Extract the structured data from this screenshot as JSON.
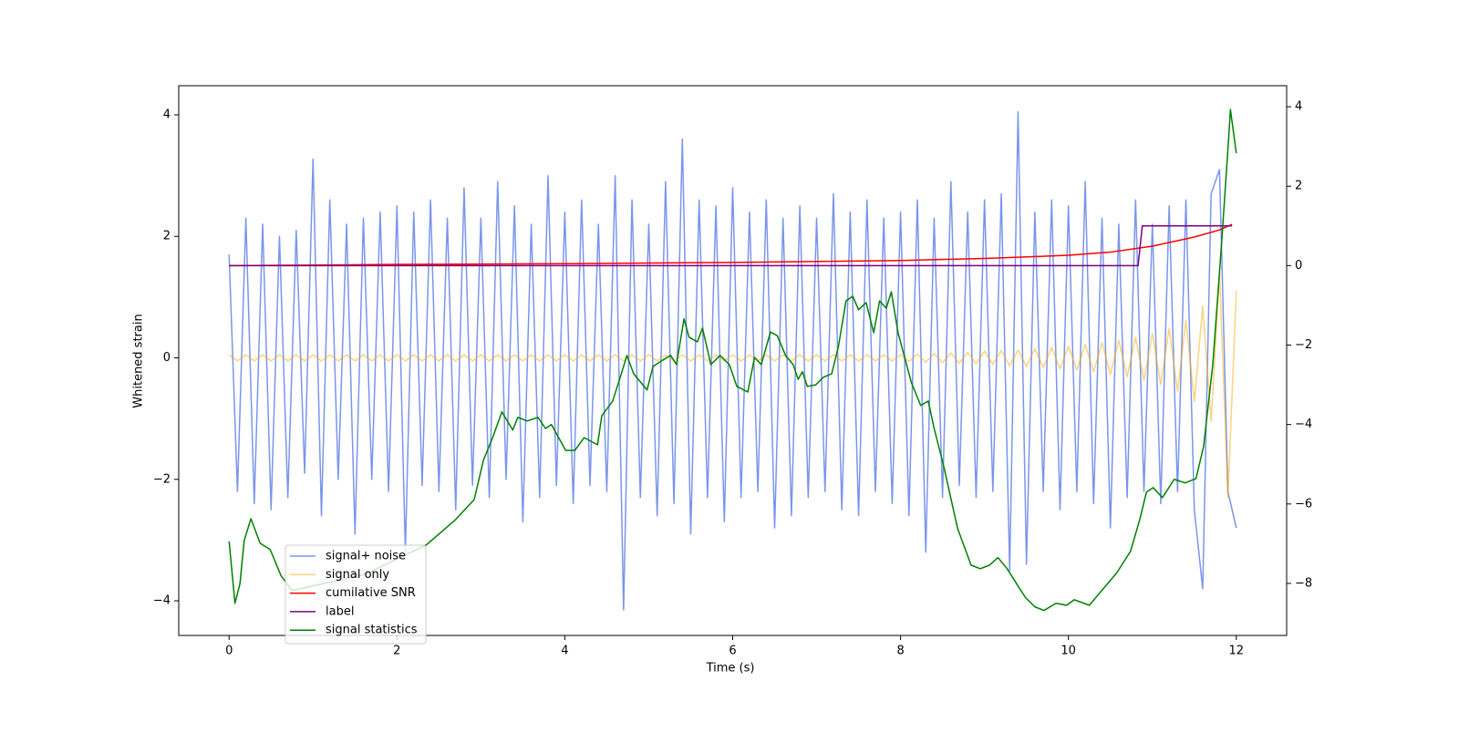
{
  "chart_data": {
    "type": "line",
    "xlabel": "Time (s)",
    "ylabel": "Whitened strain",
    "xlim": [
      -0.6,
      12.6
    ],
    "ylim": [
      -4.57,
      4.48
    ],
    "y2lim": [
      -9.31,
      4.53
    ],
    "xticks": [
      0,
      2,
      4,
      6,
      8,
      10,
      12
    ],
    "yticks": [
      {
        "value": -4,
        "label": "−4"
      },
      {
        "value": -2,
        "label": "−2"
      },
      0,
      2,
      4
    ],
    "y2ticks": [
      {
        "value": -8,
        "label": "−8"
      },
      {
        "value": -6,
        "label": "−6"
      },
      {
        "value": -4,
        "label": "−4"
      },
      {
        "value": -2,
        "label": "−2"
      },
      0,
      2,
      4
    ],
    "legend": "lower left",
    "x": [
      0,
      0.1,
      0.2,
      0.3,
      0.4,
      0.5,
      0.6,
      0.7,
      0.8,
      0.9,
      1,
      1.1,
      1.2,
      1.3,
      1.4,
      1.5,
      1.6,
      1.7,
      1.8,
      1.9,
      2,
      2.1,
      2.2,
      2.3,
      2.4,
      2.5,
      2.6,
      2.7,
      2.8,
      2.9,
      3,
      3.1,
      3.2,
      3.3,
      3.4,
      3.5,
      3.6,
      3.7,
      3.8,
      3.9,
      4,
      4.1,
      4.2,
      4.3,
      4.4,
      4.5,
      4.6,
      4.7,
      4.8,
      4.9,
      5,
      5.1,
      5.2,
      5.3,
      5.4,
      5.5,
      5.6,
      5.7,
      5.8,
      5.9,
      6,
      6.1,
      6.2,
      6.3,
      6.4,
      6.5,
      6.6,
      6.7,
      6.8,
      6.9,
      7,
      7.1,
      7.2,
      7.3,
      7.4,
      7.5,
      7.6,
      7.7,
      7.8,
      7.9,
      8,
      8.1,
      8.2,
      8.3,
      8.4,
      8.5,
      8.6,
      8.7,
      8.8,
      8.9,
      9,
      9.1,
      9.2,
      9.3,
      9.4,
      9.5,
      9.6,
      9.7,
      9.8,
      9.9,
      10,
      10.1,
      10.2,
      10.3,
      10.4,
      10.5,
      10.6,
      10.7,
      10.8,
      10.9,
      11,
      11.1,
      11.2,
      11.3,
      11.4,
      11.5,
      11.6,
      11.7,
      11.8,
      11.9,
      12
    ],
    "series": [
      {
        "name": "signal+ noise",
        "color": "#4169e1",
        "alpha": 0.7,
        "values": [
          1.7,
          -2.2,
          2.3,
          -2.4,
          2.2,
          -2.5,
          2.0,
          -2.3,
          2.1,
          -1.9,
          3.27,
          -2.6,
          2.6,
          -2.0,
          2.2,
          -2.9,
          2.3,
          -2.0,
          2.4,
          -2.2,
          2.5,
          -3.2,
          2.4,
          -2.1,
          2.6,
          -2.2,
          2.3,
          -2.5,
          2.8,
          -2.1,
          2.3,
          -2.3,
          2.9,
          -2.0,
          2.5,
          -2.7,
          2.2,
          -2.3,
          3.0,
          -2.1,
          2.4,
          -2.4,
          2.6,
          -2.1,
          2.2,
          -2.2,
          3.0,
          -4.15,
          2.6,
          -2.3,
          2.2,
          -2.6,
          2.9,
          -2.4,
          3.6,
          -2.9,
          2.6,
          -2.3,
          2.5,
          -2.7,
          2.8,
          -2.3,
          2.4,
          -2.2,
          2.6,
          -2.8,
          2.3,
          -2.6,
          2.5,
          -2.3,
          2.3,
          -2.2,
          2.7,
          -2.5,
          2.4,
          -2.6,
          2.6,
          -2.2,
          2.3,
          -2.4,
          2.4,
          -2.6,
          2.6,
          -3.2,
          2.3,
          -2.3,
          2.9,
          -2.1,
          2.4,
          -2.3,
          2.6,
          -2.2,
          2.7,
          -3.5,
          4.05,
          -3.4,
          2.4,
          -2.2,
          2.6,
          -2.5,
          2.5,
          -2.2,
          2.9,
          -2.4,
          2.3,
          -2.8,
          2.2,
          -2.3,
          2.6,
          -2.2,
          2.2,
          -2.4,
          2.5,
          -2.2,
          2.6,
          -2.5,
          -3.8,
          2.7,
          3.1,
          -2.2,
          -2.8
        ]
      },
      {
        "name": "signal only",
        "color": "#ffa500",
        "alpha": 0.5,
        "values": [
          0.05,
          -0.05,
          0.05,
          -0.05,
          0.05,
          -0.05,
          0.05,
          -0.05,
          0.05,
          -0.05,
          0.05,
          -0.05,
          0.05,
          -0.05,
          0.05,
          -0.05,
          0.05,
          -0.05,
          0.05,
          -0.05,
          0.05,
          -0.05,
          0.05,
          -0.05,
          0.05,
          -0.05,
          0.05,
          -0.05,
          0.05,
          -0.05,
          0.05,
          -0.05,
          0.05,
          -0.05,
          0.05,
          -0.05,
          0.05,
          -0.05,
          0.05,
          -0.05,
          0.05,
          -0.05,
          0.05,
          -0.05,
          0.05,
          -0.05,
          0.05,
          -0.05,
          0.05,
          -0.05,
          0.05,
          -0.05,
          0.05,
          -0.05,
          0.05,
          -0.05,
          0.05,
          -0.05,
          0.05,
          -0.05,
          0.05,
          -0.05,
          0.05,
          -0.05,
          0.05,
          -0.05,
          0.05,
          -0.05,
          0.05,
          -0.05,
          0.05,
          -0.05,
          0.05,
          -0.05,
          0.05,
          -0.05,
          0.05,
          -0.05,
          0.05,
          -0.05,
          0.05,
          -0.06,
          0.06,
          -0.07,
          0.07,
          -0.08,
          0.08,
          -0.09,
          0.09,
          -0.1,
          0.11,
          -0.11,
          0.12,
          -0.13,
          0.13,
          -0.14,
          0.15,
          -0.16,
          0.17,
          -0.18,
          0.19,
          -0.2,
          0.22,
          -0.23,
          0.25,
          -0.27,
          0.29,
          -0.31,
          0.34,
          -0.37,
          0.4,
          -0.44,
          0.49,
          -0.55,
          0.62,
          -0.72,
          0.85,
          -1.05,
          1.4,
          -2.3,
          1.1
        ]
      },
      {
        "name": "cumilative SNR",
        "color": "#ff0000",
        "alpha": 1,
        "axis": "y2",
        "x": [
          0,
          2,
          4,
          6,
          8,
          9,
          10,
          10.5,
          11,
          11.5,
          11.8,
          11.95
        ],
        "values": [
          0,
          0.03,
          0.05,
          0.08,
          0.13,
          0.18,
          0.26,
          0.34,
          0.49,
          0.72,
          0.9,
          1.04
        ]
      },
      {
        "name": "label",
        "color": "#800080",
        "alpha": 1,
        "axis": "y2",
        "x": [
          0,
          10.83,
          10.88,
          11.95
        ],
        "values": [
          0,
          0,
          1,
          1
        ]
      },
      {
        "name": "signal statistics",
        "color": "#008000",
        "alpha": 1,
        "axis": "y2",
        "x": [
          0,
          0.07,
          0.13,
          0.18,
          0.26,
          0.37,
          0.49,
          0.62,
          0.75,
          1.62,
          2.35,
          2.7,
          2.92,
          3.03,
          3.14,
          3.25,
          3.38,
          3.44,
          3.55,
          3.68,
          3.77,
          3.84,
          4.01,
          4.12,
          4.23,
          4.39,
          4.44,
          4.57,
          4.66,
          4.74,
          4.82,
          4.98,
          5.05,
          5.15,
          5.26,
          5.33,
          5.42,
          5.48,
          5.58,
          5.64,
          5.74,
          5.85,
          5.96,
          6.05,
          6.18,
          6.26,
          6.34,
          6.45,
          6.53,
          6.63,
          6.72,
          6.78,
          6.83,
          6.89,
          6.99,
          7.08,
          7.18,
          7.26,
          7.35,
          7.43,
          7.5,
          7.59,
          7.68,
          7.75,
          7.83,
          7.89,
          7.97,
          8.13,
          8.24,
          8.33,
          8.4,
          8.51,
          8.68,
          8.84,
          8.95,
          9.06,
          9.16,
          9.27,
          9.38,
          9.49,
          9.6,
          9.71,
          9.85,
          9.98,
          10.07,
          10.25,
          10.36,
          10.47,
          10.58,
          10.74,
          10.85,
          10.93,
          11.01,
          11.12,
          11.26,
          11.39,
          11.52,
          11.61,
          11.72,
          11.83,
          11.91,
          11.93,
          12
        ],
        "values": [
          -6.94,
          -8.5,
          -8.0,
          -6.92,
          -6.37,
          -6.99,
          -7.15,
          -7.81,
          -8.18,
          -7.77,
          -7.03,
          -6.39,
          -5.89,
          -4.9,
          -4.33,
          -3.68,
          -4.14,
          -3.82,
          -3.91,
          -3.82,
          -4.1,
          -4.0,
          -4.65,
          -4.65,
          -4.33,
          -4.51,
          -3.78,
          -3.41,
          -2.81,
          -2.26,
          -2.72,
          -3.13,
          -2.54,
          -2.4,
          -2.26,
          -2.49,
          -1.34,
          -1.8,
          -1.92,
          -1.57,
          -2.49,
          -2.26,
          -2.49,
          -3.04,
          -3.18,
          -2.31,
          -2.49,
          -1.67,
          -1.76,
          -2.26,
          -2.49,
          -2.86,
          -2.67,
          -3.04,
          -3.0,
          -2.81,
          -2.72,
          -2.03,
          -0.89,
          -0.77,
          -1.11,
          -0.93,
          -1.69,
          -0.89,
          -1.07,
          -0.66,
          -1.69,
          -2.95,
          -3.52,
          -3.41,
          -4.1,
          -5.01,
          -6.62,
          -7.54,
          -7.63,
          -7.54,
          -7.35,
          -7.63,
          -8.0,
          -8.36,
          -8.59,
          -8.68,
          -8.5,
          -8.55,
          -8.41,
          -8.55,
          -8.27,
          -8.0,
          -7.72,
          -7.19,
          -6.39,
          -5.7,
          -5.59,
          -5.84,
          -5.38,
          -5.47,
          -5.36,
          -4.56,
          -2.49,
          0.72,
          3.24,
          3.93,
          2.83
        ]
      }
    ]
  }
}
